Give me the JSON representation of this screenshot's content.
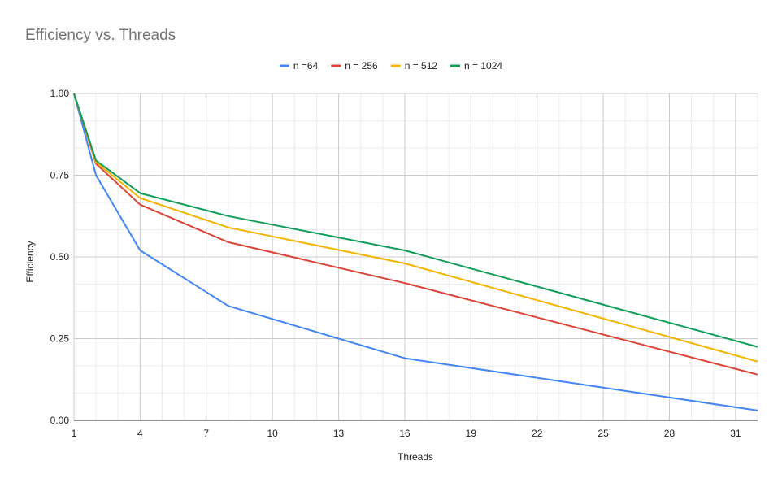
{
  "chart_data": {
    "type": "line",
    "title": "Efficiency vs. Threads",
    "xlabel": "Threads",
    "ylabel": "Efficiency",
    "xlim": [
      1,
      32
    ],
    "ylim": [
      0,
      1
    ],
    "x_ticks": [
      1,
      4,
      7,
      10,
      13,
      16,
      19,
      22,
      25,
      28,
      31
    ],
    "y_ticks": [
      0,
      0.25,
      0.5,
      0.75,
      1
    ],
    "y_tick_labels": [
      "0.00",
      "0.25",
      "0.50",
      "0.75",
      "1.00"
    ],
    "x_minor_step": 1,
    "y_minor_step": 0.083333,
    "grid": true,
    "legend": "top",
    "x": [
      1,
      2,
      4,
      8,
      16,
      32
    ],
    "series": [
      {
        "name": "n =64",
        "color": "#4285F4",
        "values": [
          1.0,
          0.75,
          0.52,
          0.35,
          0.19,
          0.03
        ]
      },
      {
        "name": "n = 256",
        "color": "#DB4437",
        "values": [
          1.0,
          0.785,
          0.66,
          0.545,
          0.42,
          0.14
        ]
      },
      {
        "name": "n = 512",
        "color": "#F4B400",
        "values": [
          1.0,
          0.79,
          0.68,
          0.59,
          0.48,
          0.18
        ]
      },
      {
        "name": "n = 1024",
        "color": "#0F9D58",
        "values": [
          1.0,
          0.795,
          0.695,
          0.625,
          0.52,
          0.225
        ]
      }
    ]
  }
}
